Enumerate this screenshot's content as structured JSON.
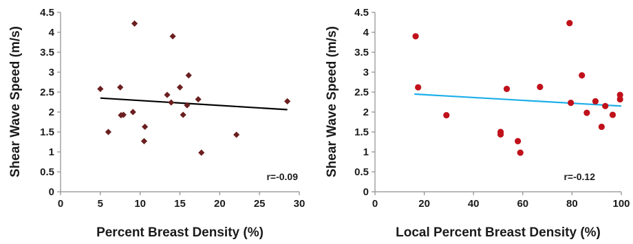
{
  "chart_data": [
    {
      "type": "scatter",
      "xlabel": "Percent Breast Density (%)",
      "ylabel": "Shear Wave Speed (m/s)",
      "xlim": [
        0,
        30
      ],
      "ylim": [
        0,
        4.5
      ],
      "xticks": [
        "0",
        "5",
        "10",
        "15",
        "20",
        "25",
        "30"
      ],
      "yticks": [
        "0",
        "0.5",
        "1",
        "1.5",
        "2",
        "2.5",
        "3",
        "3.5",
        "4",
        "4.5"
      ],
      "marker": "diamond",
      "marker_color": "#6b1f1f",
      "points": [
        {
          "x": 5.0,
          "y": 2.58
        },
        {
          "x": 6.0,
          "y": 1.5
        },
        {
          "x": 7.5,
          "y": 2.62
        },
        {
          "x": 7.6,
          "y": 1.92
        },
        {
          "x": 7.9,
          "y": 1.93
        },
        {
          "x": 9.1,
          "y": 2.0
        },
        {
          "x": 9.3,
          "y": 4.22
        },
        {
          "x": 10.5,
          "y": 1.27
        },
        {
          "x": 10.6,
          "y": 1.63
        },
        {
          "x": 13.4,
          "y": 2.43
        },
        {
          "x": 13.9,
          "y": 2.24
        },
        {
          "x": 14.1,
          "y": 3.9
        },
        {
          "x": 15.0,
          "y": 2.62
        },
        {
          "x": 15.4,
          "y": 1.93
        },
        {
          "x": 15.9,
          "y": 2.17
        },
        {
          "x": 16.1,
          "y": 2.92
        },
        {
          "x": 17.3,
          "y": 2.32
        },
        {
          "x": 17.7,
          "y": 0.98
        },
        {
          "x": 22.1,
          "y": 1.43
        },
        {
          "x": 28.5,
          "y": 2.27
        }
      ],
      "trendline": {
        "x": [
          5,
          28.5
        ],
        "y": [
          2.35,
          2.06
        ],
        "color": "#000000"
      },
      "annotation": "r=-0.09"
    },
    {
      "type": "scatter",
      "xlabel": "Local Percent Breast Density (%)",
      "ylabel": "Shear Wave Speed (m/s)",
      "xlim": [
        0,
        100
      ],
      "ylim": [
        0,
        4.5
      ],
      "xticks": [
        "0",
        "20",
        "40",
        "60",
        "80",
        "100"
      ],
      "yticks": [
        "0",
        "0.5",
        "1",
        "1.5",
        "2",
        "2.5",
        "3",
        "3.5",
        "4",
        "4.5"
      ],
      "marker": "circle",
      "marker_color": "#c0111b",
      "points": [
        {
          "x": 16.5,
          "y": 3.9
        },
        {
          "x": 17.5,
          "y": 2.62
        },
        {
          "x": 29,
          "y": 1.92
        },
        {
          "x": 51,
          "y": 1.5
        },
        {
          "x": 51,
          "y": 1.44
        },
        {
          "x": 53.5,
          "y": 2.58
        },
        {
          "x": 58,
          "y": 1.27
        },
        {
          "x": 59,
          "y": 0.98
        },
        {
          "x": 67,
          "y": 2.63
        },
        {
          "x": 79,
          "y": 4.23
        },
        {
          "x": 79.5,
          "y": 2.23
        },
        {
          "x": 84,
          "y": 2.92
        },
        {
          "x": 86,
          "y": 1.98
        },
        {
          "x": 89.5,
          "y": 2.27
        },
        {
          "x": 92,
          "y": 1.63
        },
        {
          "x": 93.5,
          "y": 2.15
        },
        {
          "x": 96.5,
          "y": 1.93
        },
        {
          "x": 99.5,
          "y": 2.43
        },
        {
          "x": 99.5,
          "y": 2.32
        }
      ],
      "trendline": {
        "x": [
          16,
          100
        ],
        "y": [
          2.45,
          2.15
        ],
        "color": "#1aaee8"
      },
      "annotation": "r=-0.12"
    }
  ]
}
